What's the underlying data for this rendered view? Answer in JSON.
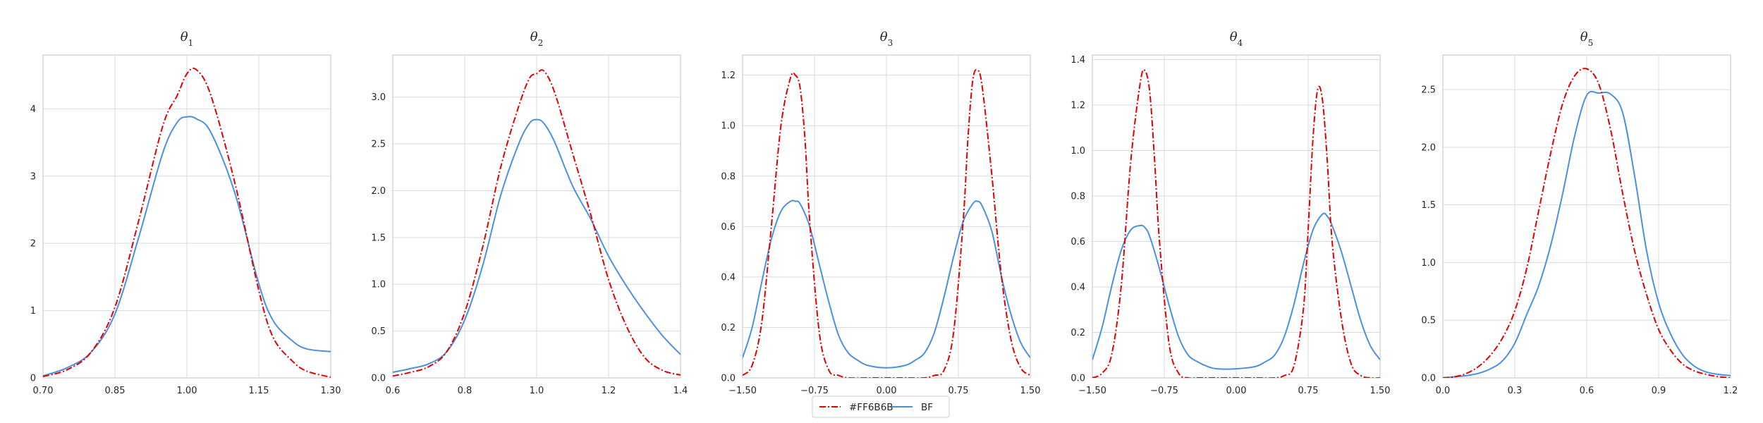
{
  "chart_data": [
    {
      "type": "line",
      "title": "θ",
      "title_sub": "1",
      "xlim": [
        0.7,
        1.3
      ],
      "ylim": [
        0,
        4.8
      ],
      "xticks": [
        0.7,
        0.85,
        1.0,
        1.15,
        1.3
      ],
      "xtick_labels": [
        "0.70",
        "0.85",
        "1.00",
        "1.15",
        "1.30"
      ],
      "yticks": [
        0,
        1,
        2,
        3,
        4
      ],
      "ytick_labels": [
        "0",
        "1",
        "2",
        "3",
        "4"
      ],
      "grid": true,
      "series": [
        {
          "name": "#FF6B6B",
          "color": "#e00000",
          "style": "dashdot",
          "x": [
            0.7,
            0.75,
            0.8,
            0.85,
            0.9,
            0.95,
            0.98,
            1.0,
            1.02,
            1.05,
            1.1,
            1.15,
            1.18,
            1.22,
            1.25,
            1.3
          ],
          "y": [
            0.02,
            0.12,
            0.38,
            1.05,
            2.35,
            3.75,
            4.2,
            4.52,
            4.58,
            4.2,
            2.9,
            1.3,
            0.6,
            0.25,
            0.1,
            0.01
          ]
        },
        {
          "name": "BF",
          "color": "#4a90e2",
          "style": "solid",
          "x": [
            0.7,
            0.75,
            0.8,
            0.85,
            0.9,
            0.95,
            0.98,
            1.0,
            1.02,
            1.05,
            1.1,
            1.15,
            1.18,
            1.22,
            1.25,
            1.3
          ],
          "y": [
            0.03,
            0.15,
            0.38,
            0.95,
            2.1,
            3.35,
            3.8,
            3.88,
            3.85,
            3.65,
            2.75,
            1.4,
            0.85,
            0.55,
            0.43,
            0.39
          ]
        }
      ]
    },
    {
      "type": "line",
      "title": "θ",
      "title_sub": "2",
      "xlim": [
        0.6,
        1.4
      ],
      "ylim": [
        0,
        3.45
      ],
      "xticks": [
        0.6,
        0.8,
        1.0,
        1.2,
        1.4
      ],
      "xtick_labels": [
        "0.6",
        "0.8",
        "1.0",
        "1.2",
        "1.4"
      ],
      "yticks": [
        0,
        0.5,
        1.0,
        1.5,
        2.0,
        2.5,
        3.0
      ],
      "ytick_labels": [
        "0.0",
        "0.5",
        "1.0",
        "1.5",
        "2.0",
        "2.5",
        "3.0"
      ],
      "grid": true,
      "series": [
        {
          "name": "#FF6B6B",
          "color": "#e00000",
          "style": "dashdot",
          "x": [
            0.6,
            0.65,
            0.7,
            0.75,
            0.8,
            0.85,
            0.9,
            0.95,
            0.98,
            1.0,
            1.02,
            1.05,
            1.1,
            1.15,
            1.2,
            1.25,
            1.3,
            1.35,
            1.4
          ],
          "y": [
            0.02,
            0.06,
            0.12,
            0.28,
            0.7,
            1.4,
            2.25,
            2.9,
            3.2,
            3.25,
            3.28,
            3.05,
            2.4,
            1.75,
            1.05,
            0.55,
            0.22,
            0.08,
            0.03
          ]
        },
        {
          "name": "BF",
          "color": "#4a90e2",
          "style": "solid",
          "x": [
            0.6,
            0.65,
            0.7,
            0.75,
            0.8,
            0.85,
            0.9,
            0.95,
            0.98,
            1.0,
            1.02,
            1.05,
            1.1,
            1.15,
            1.2,
            1.25,
            1.3,
            1.35,
            1.4
          ],
          "y": [
            0.06,
            0.1,
            0.15,
            0.28,
            0.62,
            1.2,
            1.95,
            2.5,
            2.72,
            2.76,
            2.72,
            2.52,
            2.05,
            1.7,
            1.3,
            0.98,
            0.7,
            0.45,
            0.25
          ]
        }
      ]
    },
    {
      "type": "line",
      "title": "θ",
      "title_sub": "3",
      "xlim": [
        -1.5,
        1.5
      ],
      "ylim": [
        0,
        1.28
      ],
      "xticks": [
        -1.5,
        -0.75,
        0,
        0.75,
        1.5
      ],
      "xtick_labels": [
        "−1.50",
        "−0.75",
        "0.00",
        "0.75",
        "1.50"
      ],
      "yticks": [
        0,
        0.2,
        0.4,
        0.6,
        0.8,
        1.0,
        1.2
      ],
      "ytick_labels": [
        "0.0",
        "0.2",
        "0.4",
        "0.6",
        "0.8",
        "1.0",
        "1.2"
      ],
      "grid": true,
      "series": [
        {
          "name": "#FF6B6B",
          "color": "#e00000",
          "style": "dashdot",
          "x": [
            -1.5,
            -1.4,
            -1.3,
            -1.2,
            -1.1,
            -1.0,
            -0.95,
            -0.9,
            -0.85,
            -0.8,
            -0.7,
            -0.6,
            -0.5,
            -0.4,
            -0.2,
            0.0,
            0.2,
            0.4,
            0.5,
            0.6,
            0.7,
            0.8,
            0.85,
            0.9,
            0.95,
            1.0,
            1.1,
            1.2,
            1.3,
            1.4,
            1.5
          ],
          "y": [
            0.01,
            0.05,
            0.22,
            0.6,
            1.0,
            1.19,
            1.2,
            1.15,
            0.95,
            0.62,
            0.18,
            0.03,
            0.01,
            0.0,
            0.0,
            0.0,
            0.0,
            0.0,
            0.01,
            0.03,
            0.18,
            0.62,
            0.95,
            1.18,
            1.22,
            1.15,
            0.8,
            0.4,
            0.15,
            0.04,
            0.01
          ]
        },
        {
          "name": "BF",
          "color": "#4a90e2",
          "style": "solid",
          "x": [
            -1.5,
            -1.4,
            -1.3,
            -1.2,
            -1.1,
            -1.0,
            -0.95,
            -0.9,
            -0.8,
            -0.7,
            -0.6,
            -0.5,
            -0.4,
            -0.3,
            -0.2,
            0.0,
            0.2,
            0.3,
            0.4,
            0.5,
            0.6,
            0.7,
            0.8,
            0.9,
            0.95,
            1.0,
            1.1,
            1.2,
            1.3,
            1.4,
            1.5
          ],
          "y": [
            0.08,
            0.2,
            0.38,
            0.55,
            0.66,
            0.7,
            0.7,
            0.69,
            0.6,
            0.45,
            0.3,
            0.17,
            0.1,
            0.07,
            0.05,
            0.04,
            0.05,
            0.07,
            0.1,
            0.18,
            0.32,
            0.48,
            0.62,
            0.69,
            0.7,
            0.68,
            0.58,
            0.4,
            0.25,
            0.14,
            0.08
          ]
        }
      ]
    },
    {
      "type": "line",
      "title": "θ",
      "title_sub": "4",
      "xlim": [
        -1.5,
        1.5
      ],
      "ylim": [
        0,
        1.42
      ],
      "xticks": [
        -1.5,
        -0.75,
        0,
        0.75,
        1.5
      ],
      "xtick_labels": [
        "−1.50",
        "−0.75",
        "0.00",
        "0.75",
        "1.50"
      ],
      "yticks": [
        0,
        0.2,
        0.4,
        0.6,
        0.8,
        1.0,
        1.2,
        1.4
      ],
      "ytick_labels": [
        "0.0",
        "0.2",
        "0.4",
        "0.6",
        "0.8",
        "1.0",
        "1.2",
        "1.4"
      ],
      "grid": true,
      "series": [
        {
          "name": "#FF6B6B",
          "color": "#e00000",
          "style": "dashdot",
          "x": [
            -1.5,
            -1.4,
            -1.3,
            -1.2,
            -1.1,
            -1.0,
            -0.95,
            -0.9,
            -0.85,
            -0.8,
            -0.7,
            -0.6,
            -0.5,
            -0.4,
            -0.2,
            0.0,
            0.2,
            0.4,
            0.5,
            0.6,
            0.7,
            0.75,
            0.8,
            0.85,
            0.9,
            0.95,
            1.0,
            1.1,
            1.2,
            1.3,
            1.4,
            1.5
          ],
          "y": [
            0.0,
            0.02,
            0.1,
            0.4,
            0.95,
            1.3,
            1.35,
            1.25,
            0.95,
            0.6,
            0.15,
            0.02,
            0.0,
            0.0,
            0.0,
            0.0,
            0.0,
            0.0,
            0.01,
            0.05,
            0.3,
            0.65,
            1.05,
            1.27,
            1.22,
            0.95,
            0.6,
            0.25,
            0.06,
            0.01,
            0.0,
            0.0
          ]
        },
        {
          "name": "BF",
          "color": "#4a90e2",
          "style": "solid",
          "x": [
            -1.5,
            -1.4,
            -1.3,
            -1.2,
            -1.1,
            -1.0,
            -0.95,
            -0.9,
            -0.8,
            -0.7,
            -0.6,
            -0.5,
            -0.4,
            -0.3,
            -0.2,
            0.0,
            0.2,
            0.3,
            0.4,
            0.5,
            0.6,
            0.7,
            0.8,
            0.9,
            0.95,
            1.0,
            1.1,
            1.2,
            1.3,
            1.4,
            1.5
          ],
          "y": [
            0.08,
            0.22,
            0.4,
            0.56,
            0.65,
            0.67,
            0.66,
            0.62,
            0.48,
            0.32,
            0.18,
            0.1,
            0.07,
            0.05,
            0.04,
            0.04,
            0.05,
            0.07,
            0.1,
            0.18,
            0.32,
            0.5,
            0.65,
            0.72,
            0.71,
            0.67,
            0.55,
            0.4,
            0.25,
            0.14,
            0.08
          ]
        }
      ]
    },
    {
      "type": "line",
      "title": "θ",
      "title_sub": "5",
      "xlim": [
        0.0,
        1.2
      ],
      "ylim": [
        0,
        2.8
      ],
      "xticks": [
        0.0,
        0.3,
        0.6,
        0.9,
        1.2
      ],
      "xtick_labels": [
        "0.0",
        "0.3",
        "0.6",
        "0.9",
        "1.2"
      ],
      "yticks": [
        0,
        0.5,
        1.0,
        1.5,
        2.0,
        2.5
      ],
      "ytick_labels": [
        "0.0",
        "0.5",
        "1.0",
        "1.5",
        "2.0",
        "2.5"
      ],
      "grid": true,
      "series": [
        {
          "name": "#FF6B6B",
          "color": "#e00000",
          "style": "dashdot",
          "x": [
            0.0,
            0.05,
            0.1,
            0.15,
            0.2,
            0.25,
            0.3,
            0.35,
            0.4,
            0.45,
            0.5,
            0.55,
            0.6,
            0.65,
            0.7,
            0.75,
            0.8,
            0.85,
            0.9,
            0.95,
            1.0,
            1.05,
            1.1,
            1.15,
            1.2
          ],
          "y": [
            0.0,
            0.01,
            0.04,
            0.1,
            0.2,
            0.35,
            0.58,
            0.95,
            1.45,
            1.95,
            2.38,
            2.62,
            2.68,
            2.55,
            2.15,
            1.6,
            1.1,
            0.72,
            0.42,
            0.24,
            0.12,
            0.06,
            0.03,
            0.01,
            0.0
          ]
        },
        {
          "name": "BF",
          "color": "#4a90e2",
          "style": "solid",
          "x": [
            0.0,
            0.05,
            0.1,
            0.15,
            0.2,
            0.25,
            0.3,
            0.35,
            0.4,
            0.45,
            0.5,
            0.55,
            0.6,
            0.65,
            0.7,
            0.75,
            0.8,
            0.85,
            0.9,
            0.95,
            1.0,
            1.05,
            1.1,
            1.15,
            1.2
          ],
          "y": [
            0.0,
            0.01,
            0.02,
            0.04,
            0.08,
            0.15,
            0.3,
            0.55,
            0.8,
            1.15,
            1.6,
            2.1,
            2.45,
            2.47,
            2.46,
            2.3,
            1.75,
            1.1,
            0.65,
            0.38,
            0.2,
            0.1,
            0.05,
            0.03,
            0.02
          ]
        }
      ]
    }
  ],
  "legend": {
    "placement": "bottom-center",
    "entries": [
      {
        "label": "#FF6B6B",
        "color": "#e00000",
        "style": "dashdot"
      },
      {
        "label": "BF",
        "color": "#4a90e2",
        "style": "solid"
      }
    ]
  }
}
